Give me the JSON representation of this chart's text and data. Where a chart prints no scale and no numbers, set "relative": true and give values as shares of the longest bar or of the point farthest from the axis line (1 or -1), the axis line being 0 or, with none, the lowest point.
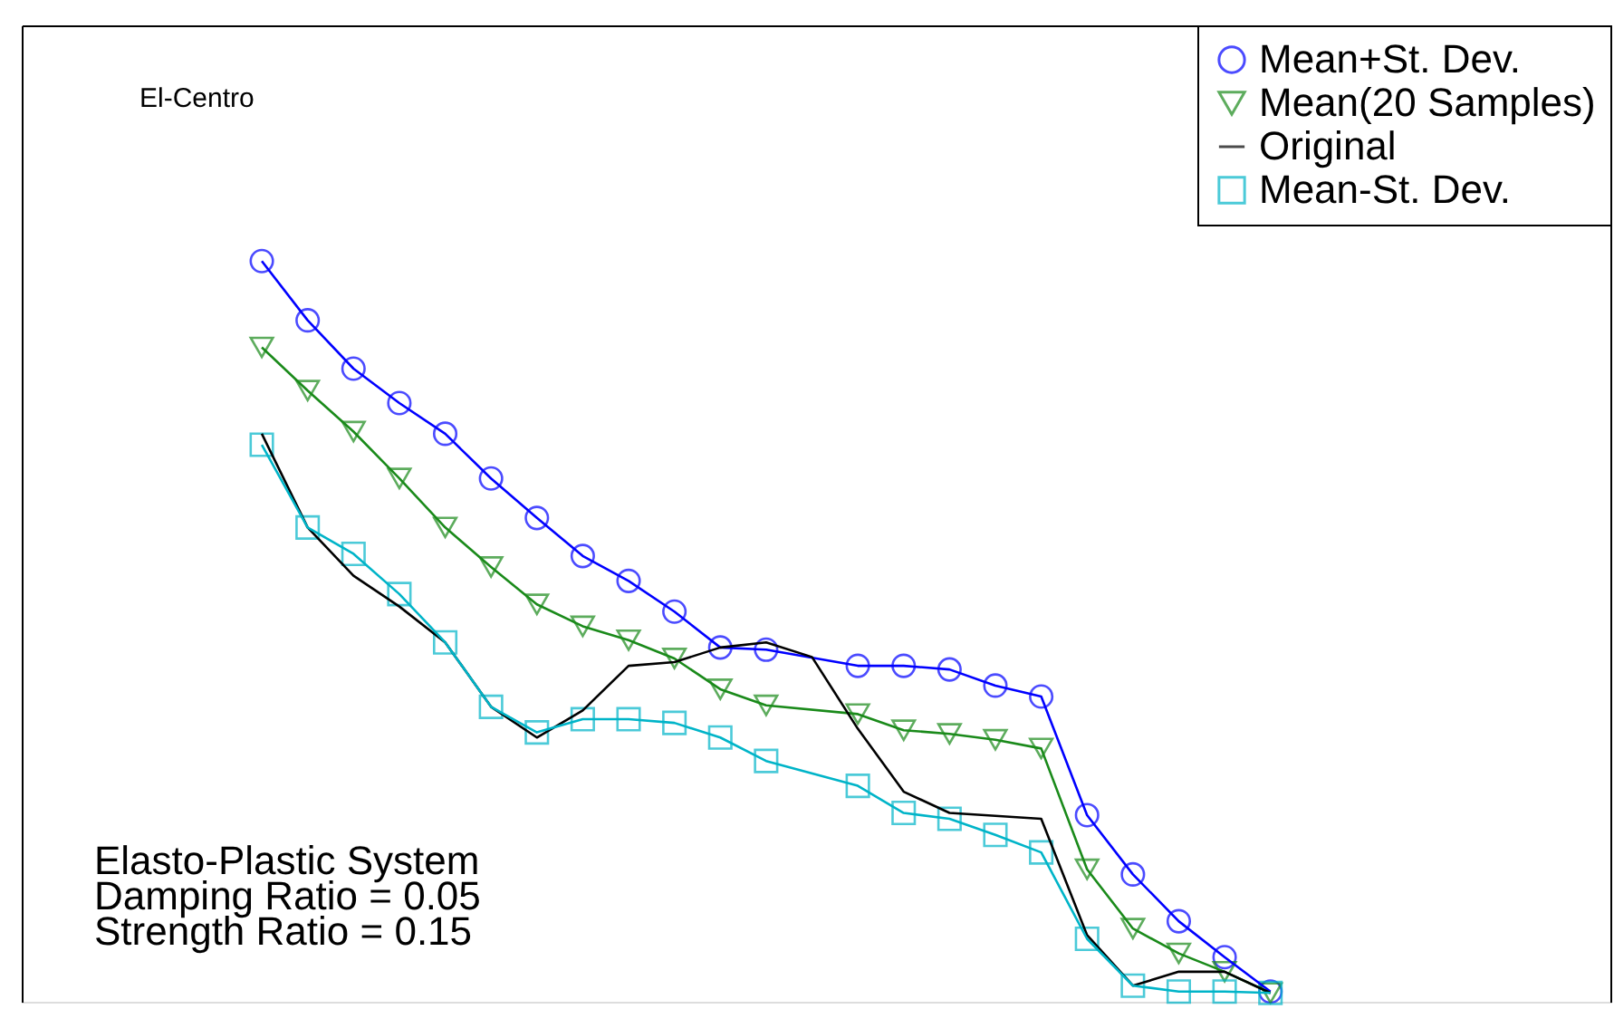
{
  "chart_data": {
    "type": "line",
    "relative": true,
    "tick_labels": false,
    "grid": false,
    "legend": "top right",
    "categories": [
      null,
      null,
      null,
      null,
      null,
      null,
      null,
      null,
      null,
      null,
      null,
      null,
      null,
      null,
      null,
      null,
      null,
      null,
      null,
      null,
      null,
      null,
      null
    ],
    "annotations": [
      "El-Centro",
      "Elasto-Plastic System",
      "Damping Ratio = 0.05",
      "Strength Ratio = 0.15"
    ],
    "series": [
      {
        "name": "Mean+St. Dev.",
        "color": "#0000ff",
        "marker": "circle",
        "values": [
          1.0,
          0.919,
          0.853,
          0.806,
          0.764,
          0.703,
          0.649,
          0.597,
          0.563,
          0.521,
          0.472,
          0.469,
          null,
          0.447,
          0.447,
          0.442,
          0.42,
          0.405,
          0.243,
          0.162,
          0.098,
          0.049,
          0.002
        ]
      },
      {
        "name": "Mean(20 Samples)",
        "color": "#1a8a1a",
        "marker": "triangle-down",
        "values": [
          0.882,
          0.823,
          0.767,
          0.703,
          0.636,
          0.582,
          0.531,
          0.501,
          0.482,
          0.457,
          0.415,
          0.393,
          null,
          0.381,
          0.359,
          0.354,
          0.346,
          0.334,
          0.169,
          0.088,
          0.054,
          0.029,
          0.0
        ]
      },
      {
        "name": "Original",
        "color": "#000000",
        "marker": "none",
        "values": [
          0.764,
          0.636,
          0.57,
          0.528,
          0.479,
          0.391,
          0.349,
          0.386,
          0.447,
          0.452,
          0.472,
          0.479,
          0.459,
          0.361,
          0.275,
          0.246,
          null,
          0.238,
          0.079,
          0.01,
          0.029,
          0.029,
          0.0
        ]
      },
      {
        "name": "Mean-St. Dev.",
        "color": "#00b4c8",
        "marker": "square",
        "values": [
          0.749,
          0.636,
          0.6,
          0.545,
          0.479,
          0.391,
          0.356,
          0.374,
          0.374,
          0.369,
          0.349,
          0.317,
          null,
          0.283,
          0.246,
          0.238,
          0.216,
          0.192,
          0.074,
          0.01,
          0.002,
          0.002,
          0.0
        ]
      }
    ]
  }
}
